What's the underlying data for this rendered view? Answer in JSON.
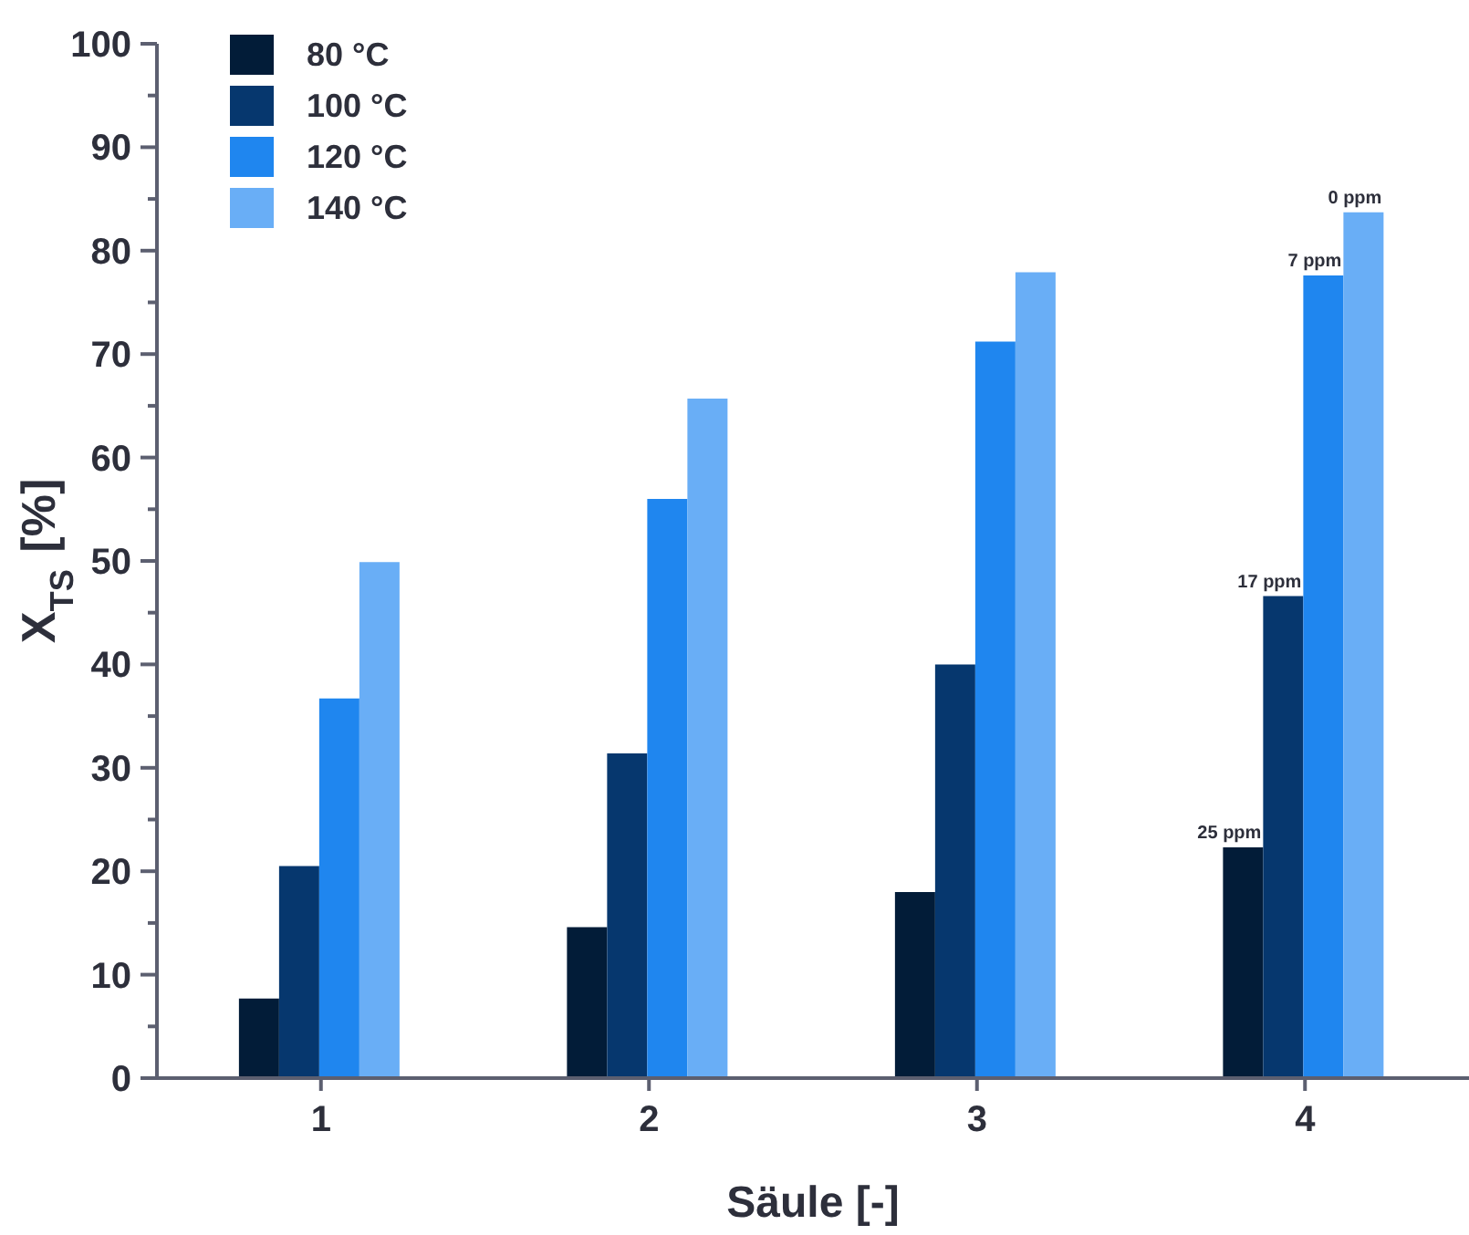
{
  "chart_data": {
    "type": "bar",
    "xlabel": "Säule [-]",
    "ylabel": "X$_{TS}$ [%]",
    "categories": [
      "1",
      "2",
      "3",
      "4"
    ],
    "series": [
      {
        "name": "80 °C",
        "color": "#021c38",
        "values": [
          7.7,
          14.6,
          18.0,
          22.3
        ]
      },
      {
        "name": "100 °C",
        "color": "#06376e",
        "values": [
          20.5,
          31.4,
          40.0,
          46.6
        ]
      },
      {
        "name": "120 °C",
        "color": "#1f86ef",
        "values": [
          36.7,
          56.0,
          71.2,
          77.6
        ]
      },
      {
        "name": "140 °C",
        "color": "#69aef6",
        "values": [
          49.9,
          65.7,
          77.9,
          83.7
        ]
      }
    ],
    "annotations": [
      {
        "text": "25 ppm",
        "x": "4",
        "y": 22.3
      },
      {
        "text": "17 ppm",
        "x": "4",
        "y": 46.6
      },
      {
        "text": "7 ppm",
        "x": "4",
        "y": 77.6
      },
      {
        "text": "0 ppm",
        "y": 83.7
      }
    ],
    "ylim": [
      0,
      100
    ],
    "yticks": [
      0,
      {
        "value": 5,
        "label": null
      },
      10,
      {
        "value": 15,
        "label": null
      },
      20,
      {
        "value": 25,
        "label": null
      },
      30,
      {
        "value": 35,
        "label": null
      },
      40,
      {
        "value": 45,
        "label": null
      },
      50,
      {
        "value": 55,
        "label": null
      },
      60,
      {
        "value": 65,
        "label": null
      },
      70,
      {
        "value": 75,
        "label": null
      },
      80,
      {
        "value": 85,
        "label": null
      },
      90,
      {
        "value": 95,
        "label": null
      },
      100
    ],
    "grid": false,
    "legend": "top left"
  }
}
